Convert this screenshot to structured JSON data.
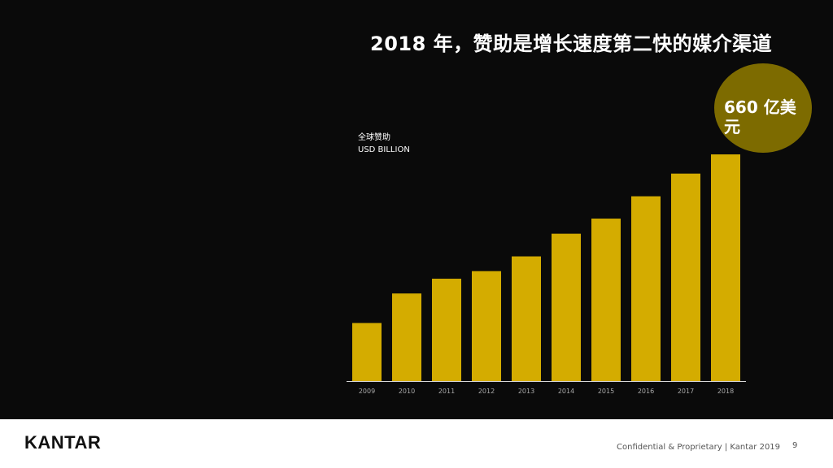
{
  "slide": {
    "title": "2018 年，赞助是增长速度第二快的媒介渠道",
    "badge": "660 亿美元",
    "ylabel_line1": "全球赞助",
    "ylabel_line2": "USD BILLION"
  },
  "footer": {
    "logo": "KANTAR",
    "confidential": "Confidential & Proprietary | Kantar 2019",
    "page_number": "9"
  },
  "colors": {
    "bar": "#d4ac00",
    "background": "#0a0a0a",
    "badge": "#7d6b00"
  },
  "chart_data": {
    "type": "bar",
    "categories": [
      "2009",
      "2010",
      "2011",
      "2012",
      "2013",
      "2014",
      "2015",
      "2016",
      "2017",
      "2018"
    ],
    "values": [
      16.9,
      25.5,
      29.8,
      32.0,
      36.3,
      42.9,
      47.3,
      53.8,
      60.4,
      66.0
    ],
    "ylim": [
      0,
      70
    ],
    "grid": false
  }
}
